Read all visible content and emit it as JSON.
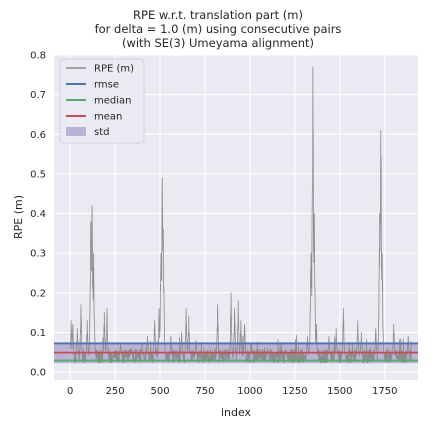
{
  "chart_data": {
    "type": "line",
    "title_lines": [
      "RPE w.r.t. translation part (m)",
      "for delta = 1.0 (m) using consecutive pairs",
      "(with SE(3) Umeyama alignment)"
    ],
    "xlabel": "index",
    "ylabel": "RPE (m)",
    "xlim": [
      -90,
      1935
    ],
    "ylim": [
      -0.02,
      0.8
    ],
    "xticks": [
      0,
      250,
      500,
      750,
      1000,
      1250,
      1500,
      1750
    ],
    "yticks": [
      0.0,
      0.1,
      0.2,
      0.3,
      0.4,
      0.5,
      0.6,
      0.7,
      0.8
    ],
    "grid": true,
    "legend_position": "top-left",
    "series": [
      {
        "name": "RPE (m)",
        "color": "#8c8c8c",
        "n_points": 1900,
        "baseline": 0.04,
        "peaks": [
          {
            "x": 5,
            "y": 0.13
          },
          {
            "x": 15,
            "y": 0.12
          },
          {
            "x": 40,
            "y": 0.11
          },
          {
            "x": 60,
            "y": 0.17
          },
          {
            "x": 95,
            "y": 0.13
          },
          {
            "x": 115,
            "y": 0.38
          },
          {
            "x": 122,
            "y": 0.42
          },
          {
            "x": 130,
            "y": 0.3
          },
          {
            "x": 190,
            "y": 0.15
          },
          {
            "x": 205,
            "y": 0.16
          },
          {
            "x": 280,
            "y": 0.07
          },
          {
            "x": 340,
            "y": 0.06
          },
          {
            "x": 400,
            "y": 0.07
          },
          {
            "x": 430,
            "y": 0.09
          },
          {
            "x": 470,
            "y": 0.13
          },
          {
            "x": 495,
            "y": 0.16
          },
          {
            "x": 505,
            "y": 0.3
          },
          {
            "x": 512,
            "y": 0.49
          },
          {
            "x": 518,
            "y": 0.36
          },
          {
            "x": 560,
            "y": 0.09
          },
          {
            "x": 620,
            "y": 0.1
          },
          {
            "x": 645,
            "y": 0.16
          },
          {
            "x": 660,
            "y": 0.14
          },
          {
            "x": 700,
            "y": 0.08
          },
          {
            "x": 820,
            "y": 0.17
          },
          {
            "x": 895,
            "y": 0.2
          },
          {
            "x": 915,
            "y": 0.16
          },
          {
            "x": 935,
            "y": 0.18
          },
          {
            "x": 950,
            "y": 0.13
          },
          {
            "x": 970,
            "y": 0.12
          },
          {
            "x": 1010,
            "y": 0.07
          },
          {
            "x": 1100,
            "y": 0.06
          },
          {
            "x": 1200,
            "y": 0.05
          },
          {
            "x": 1320,
            "y": 0.09
          },
          {
            "x": 1340,
            "y": 0.3
          },
          {
            "x": 1350,
            "y": 0.77
          },
          {
            "x": 1358,
            "y": 0.4
          },
          {
            "x": 1370,
            "y": 0.12
          },
          {
            "x": 1440,
            "y": 0.09
          },
          {
            "x": 1480,
            "y": 0.11
          },
          {
            "x": 1520,
            "y": 0.16
          },
          {
            "x": 1600,
            "y": 0.13
          },
          {
            "x": 1620,
            "y": 0.1
          },
          {
            "x": 1700,
            "y": 0.11
          },
          {
            "x": 1722,
            "y": 0.4
          },
          {
            "x": 1728,
            "y": 0.61
          },
          {
            "x": 1735,
            "y": 0.3
          },
          {
            "x": 1800,
            "y": 0.12
          },
          {
            "x": 1880,
            "y": 0.09
          }
        ]
      }
    ],
    "stats": {
      "rmse": {
        "name": "rmse",
        "value": 0.072,
        "color": "#4c72b0"
      },
      "median": {
        "name": "median",
        "value": 0.029,
        "color": "#55a868"
      },
      "mean": {
        "name": "mean",
        "value": 0.049,
        "color": "#c44e52"
      },
      "std": {
        "name": "std",
        "value": 0.053,
        "color": "#8172b2"
      }
    },
    "legend_entries": [
      "RPE (m)",
      "rmse",
      "median",
      "mean",
      "std"
    ]
  },
  "colors": {
    "plot_background": "#eaeaf2",
    "grid": "#ffffff",
    "text": "#262626"
  }
}
